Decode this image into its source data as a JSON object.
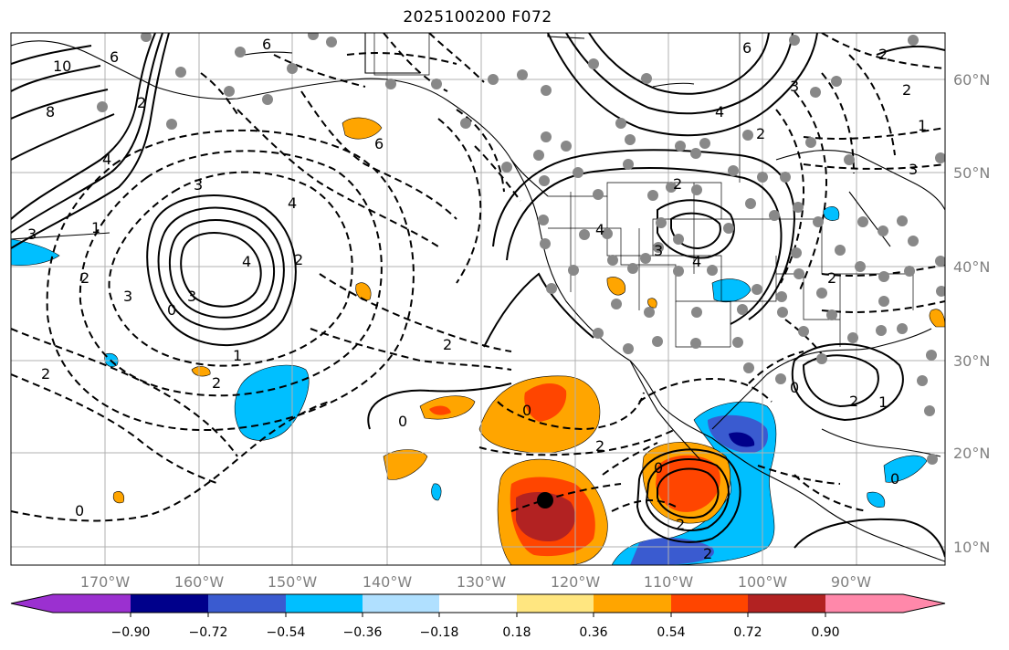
{
  "title": "2025100200 F072",
  "map": {
    "lon_labels": [
      "170°W",
      "160°W",
      "150°W",
      "140°W",
      "130°W",
      "120°W",
      "110°W",
      "100°W",
      "90°W"
    ],
    "lat_labels": [
      "60°N",
      "50°N",
      "40°N",
      "30°N",
      "20°N",
      "10°N"
    ],
    "contour_labels": [
      "6",
      "10",
      "8",
      "6",
      "2",
      "4",
      "1",
      "3",
      "2",
      "6",
      "4",
      "4",
      "3",
      "2",
      "0",
      "3",
      "3",
      "2",
      "1",
      "2",
      "0",
      "2",
      "0",
      "2",
      "0",
      "0",
      "2",
      "6",
      "4",
      "2",
      "3",
      "2",
      "4",
      "4",
      "3",
      "2",
      "1",
      "3",
      "2",
      "1",
      "2",
      "0",
      "2",
      "2",
      "0"
    ],
    "land_boundary_color": "#000000",
    "grid_color": "#b0b0b0"
  },
  "colorbar": {
    "ticks": [
      "−0.90",
      "−0.72",
      "−0.54",
      "−0.36",
      "−0.18",
      "0.18",
      "0.36",
      "0.54",
      "0.72",
      "0.90"
    ],
    "colors": [
      "#9b30d0",
      "#00008b",
      "#3a5bd0",
      "#00bfff",
      "#b0e0ff",
      "#ffffff",
      "#ffe680",
      "#ffa500",
      "#ff4500",
      "#b22222",
      "#ff88aa"
    ]
  },
  "chart_data": {
    "type": "contour-map",
    "title": "2025100200 F072",
    "region": {
      "lon_range": [
        -180,
        -80
      ],
      "lat_range": [
        8,
        65
      ]
    },
    "colorbar_levels": [
      -0.9,
      -0.72,
      -0.54,
      -0.36,
      -0.18,
      0.18,
      0.36,
      0.54,
      0.72,
      0.9
    ],
    "colorbar_extend": "both",
    "features": [
      {
        "name": "black-marker",
        "lon": -123,
        "lat": 15
      }
    ]
  }
}
